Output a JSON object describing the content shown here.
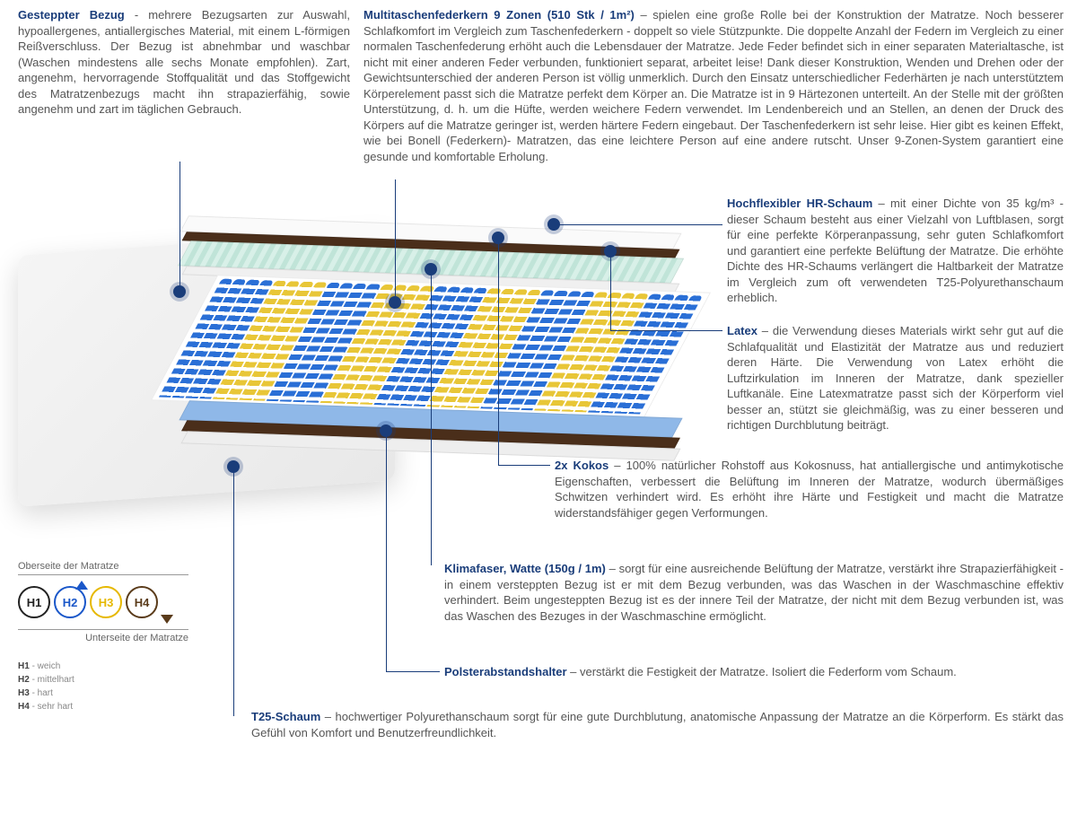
{
  "colors": {
    "title": "#1a3d7a",
    "body": "#555555",
    "dot": "#1a3d7a",
    "h1": "#222222",
    "h2": "#1a57c9",
    "h3": "#e6b800",
    "h4": "#5a3b1a",
    "spring_blue": "#2a6fd6",
    "spring_yellow": "#e8c637",
    "kokos": "#4a2e1a"
  },
  "sections": {
    "bezug": {
      "title": "Gesteppter Bezug",
      "body": " - mehrere Bezugsarten zur Auswahl, hypoallergenes, antiallergisches Material, mit einem L-förmigen Reißverschluss. Der Bezug ist abnehmbar und waschbar (Waschen mindestens alle sechs Monate empfohlen). Zart, angenehm, hervorragende Stoffqualität und das Stoffgewicht des Matratzenbezugs macht ihn strapazierfähig, sowie angenehm und zart im täglichen Gebrauch."
    },
    "federkern": {
      "title": "Multitaschenfederkern 9 Zonen (510 Stk / 1m²)",
      "body": " – spielen eine große Rolle bei der Konstruktion der Matratze. Noch besserer Schlafkomfort im Vergleich zum Taschenfederkern - doppelt so viele Stützpunkte. Die doppelte Anzahl der Federn im Vergleich zu einer normalen Taschenfederung erhöht auch die Lebensdauer der Matratze. Jede Feder befindet sich in einer separaten Materialtasche, ist nicht mit einer anderen Feder verbunden, funktioniert separat, arbeitet leise! Dank dieser Konstruktion, Wenden und Drehen oder der Gewichtsunterschied der anderen Person ist völlig unmerklich. Durch den Einsatz unterschiedlicher Federhärten je nach unterstütztem Körperelement passt sich die Matratze perfekt dem Körper an. Die Matratze ist in 9 Härtezonen unterteilt. An der Stelle mit der größten Unterstützung, d. h. um die Hüfte, werden weichere Federn verwendet. Im Lendenbereich und an Stellen, an denen der Druck des Körpers auf die Matratze geringer ist, werden härtere Federn eingebaut. Der Taschenfederkern ist sehr leise. Hier gibt es keinen Effekt, wie bei Bonell (Federkern)- Matratzen, das eine leichtere Person auf eine andere rutscht. Unser 9-Zonen-System garantiert eine gesunde und komfortable Erholung."
    },
    "hrschaum": {
      "title": "Hochflexibler HR-Schaum",
      "body": " – mit einer Dichte von 35 kg/m³ - dieser Schaum besteht aus einer Vielzahl von Luftblasen, sorgt für eine perfekte Körperanpassung, sehr guten Schlafkomfort und garantiert eine perfekte Belüftung der Matratze. Die erhöhte Dichte des HR-Schaums verlängert die Haltbarkeit der Matratze im Vergleich zum oft verwendeten T25-Polyurethanschaum erheblich."
    },
    "latex": {
      "title": "Latex",
      "body": " – die Verwendung dieses Materials wirkt sehr gut auf die Schlafqualität und Elastizität der Matratze aus und reduziert deren Härte. Die Verwendung von Latex erhöht die Luftzirkulation im Inneren der Matratze, dank spezieller Luftkanäle. Eine Latexmatratze passt sich der Körperform viel besser an, stützt sie gleichmäßig, was zu einer besseren und richtigen Durchblutung beiträgt."
    },
    "kokos": {
      "title": "2x Kokos",
      "body": " – 100% natürlicher Rohstoff aus Kokosnuss, hat antiallergische und antimykotische Eigenschaften, verbessert die Belüftung im Inneren der Matratze, wodurch übermäßiges Schwitzen verhindert wird. Es erhöht ihre Härte und Festigkeit und macht die Matratze widerstandsfähiger gegen Verformungen."
    },
    "klimafaser": {
      "title": "Klimafaser, Watte (150g / 1m)",
      "body": " – sorgt für eine ausreichende Belüftung der Matratze, verstärkt ihre Strapazierfähigkeit - in einem versteppten Bezug ist er mit dem Bezug verbunden, was das Waschen in der Waschmaschine effektiv verhindert. Beim ungesteppten Bezug ist es der innere Teil der Matratze, der nicht mit dem Bezug verbunden ist, was das Waschen des Bezuges in der Waschmaschine ermöglicht."
    },
    "polster": {
      "title": "Polsterabstandshalter",
      "body": " – verstärkt die Festigkeit der Matratze. Isoliert die Federform vom Schaum."
    },
    "t25": {
      "title": "T25-Schaum",
      "body": " – hochwertiger Polyurethanschaum sorgt für eine gute Durchblutung, anatomische Anpassung der Matratze an die Körperform. Es stärkt das Gefühl von Komfort und Benutzerfreundlichkeit."
    }
  },
  "legend": {
    "top_label": "Oberseite der Matratze",
    "bottom_label": "Unterseite der Matratze",
    "items": [
      {
        "code": "H1",
        "desc": "weich",
        "color": "#222222"
      },
      {
        "code": "H2",
        "desc": "mittelhart",
        "color": "#1a57c9"
      },
      {
        "code": "H3",
        "desc": "hart",
        "color": "#e6b800"
      },
      {
        "code": "H4",
        "desc": "sehr hart",
        "color": "#5a3b1a"
      }
    ]
  },
  "springs": {
    "zones": 9,
    "pattern": [
      "blue",
      "yellow",
      "blue",
      "yellow",
      "blue",
      "yellow",
      "blue",
      "yellow",
      "blue"
    ],
    "cols_per_zone": 4,
    "colors": {
      "blue": "#2a6fd6",
      "yellow": "#e8c637"
    }
  }
}
